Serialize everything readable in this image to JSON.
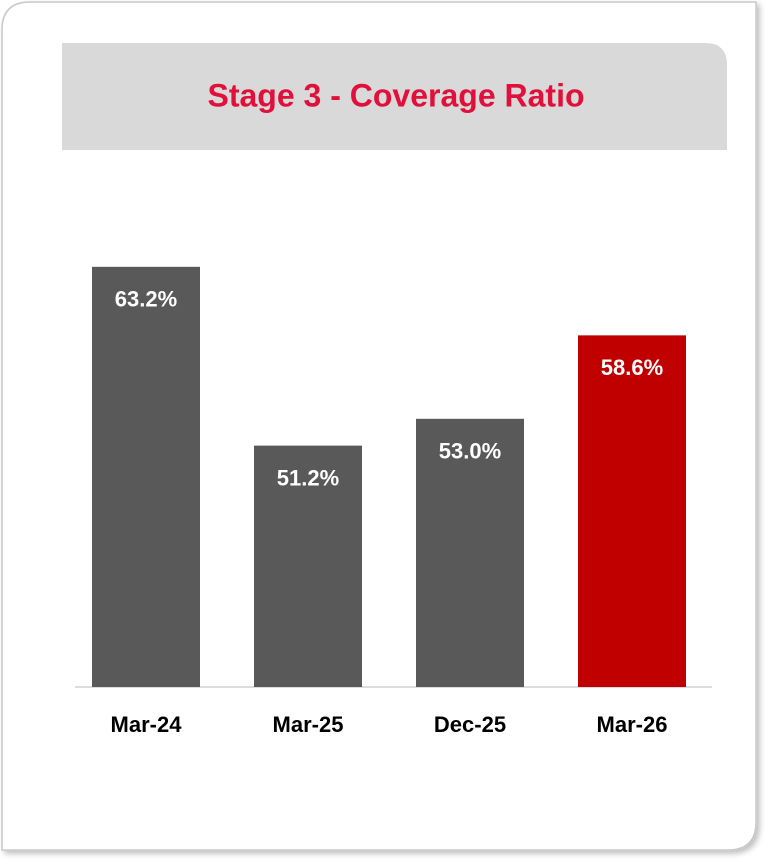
{
  "chart_data": {
    "type": "bar",
    "title": "Stage 3 - Coverage Ratio",
    "categories": [
      "Mar-24",
      "Mar-25",
      "Dec-25",
      "Mar-26"
    ],
    "values": [
      63.2,
      51.2,
      53.0,
      58.6
    ],
    "value_labels": [
      "63.2%",
      "51.2%",
      "53.0%",
      "58.6%"
    ],
    "colors": [
      "#595959",
      "#595959",
      "#595959",
      "#c00000"
    ],
    "ylim": [
      35,
      70
    ]
  }
}
